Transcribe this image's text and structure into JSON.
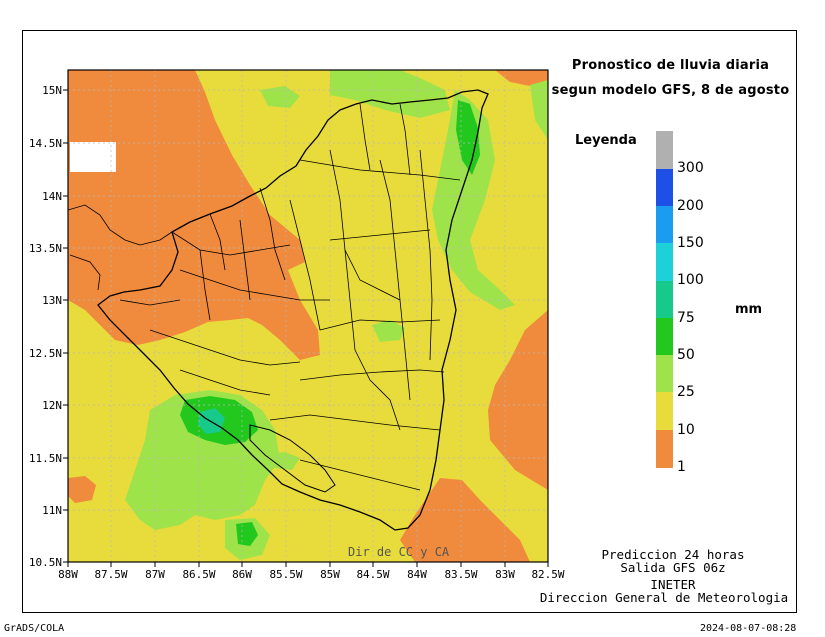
{
  "title": {
    "line1": "Pronostico de lluvia diaria",
    "line2": "segun modelo GFS, 8 de agosto"
  },
  "legend": {
    "title": "Leyenda",
    "unit": "mm",
    "bins": [
      {
        "label": "1",
        "color": "#f08a3c"
      },
      {
        "label": "10",
        "color": "#e8dc3c"
      },
      {
        "label": "25",
        "color": "#9ee34a"
      },
      {
        "label": "50",
        "color": "#22c81e"
      },
      {
        "label": "75",
        "color": "#17c98a"
      },
      {
        "label": "100",
        "color": "#1ed0d8"
      },
      {
        "label": "150",
        "color": "#1a9cf0"
      },
      {
        "label": "200",
        "color": "#1e50e8"
      },
      {
        "label": "300",
        "color": "#b0b0b0"
      }
    ]
  },
  "axes": {
    "x_ticks": [
      "88W",
      "87.5W",
      "87W",
      "86.5W",
      "86W",
      "85.5W",
      "85W",
      "84.5W",
      "84W",
      "83.5W",
      "83W",
      "82.5W"
    ],
    "y_ticks": [
      "15N",
      "14.5N",
      "14N",
      "13.5N",
      "13N",
      "12.5N",
      "12N",
      "11.5N",
      "11N",
      "10.5N"
    ]
  },
  "map_credit": "Dir de CC y CA",
  "info": {
    "line1": "Prediccion 24 horas",
    "line2": "Salida GFS 06z",
    "line3": "INETER",
    "line4": "Direccion General de Meteorologia"
  },
  "footer": {
    "left": "GrADS/COLA",
    "right": "2024-08-07-08:28"
  },
  "colors": {
    "orange": "#f08a3c",
    "yellow": "#e8dc3c",
    "lightgreen": "#9ee34a",
    "green": "#22c81e",
    "teal": "#17c98a",
    "white_nodata": "#ffffff"
  }
}
